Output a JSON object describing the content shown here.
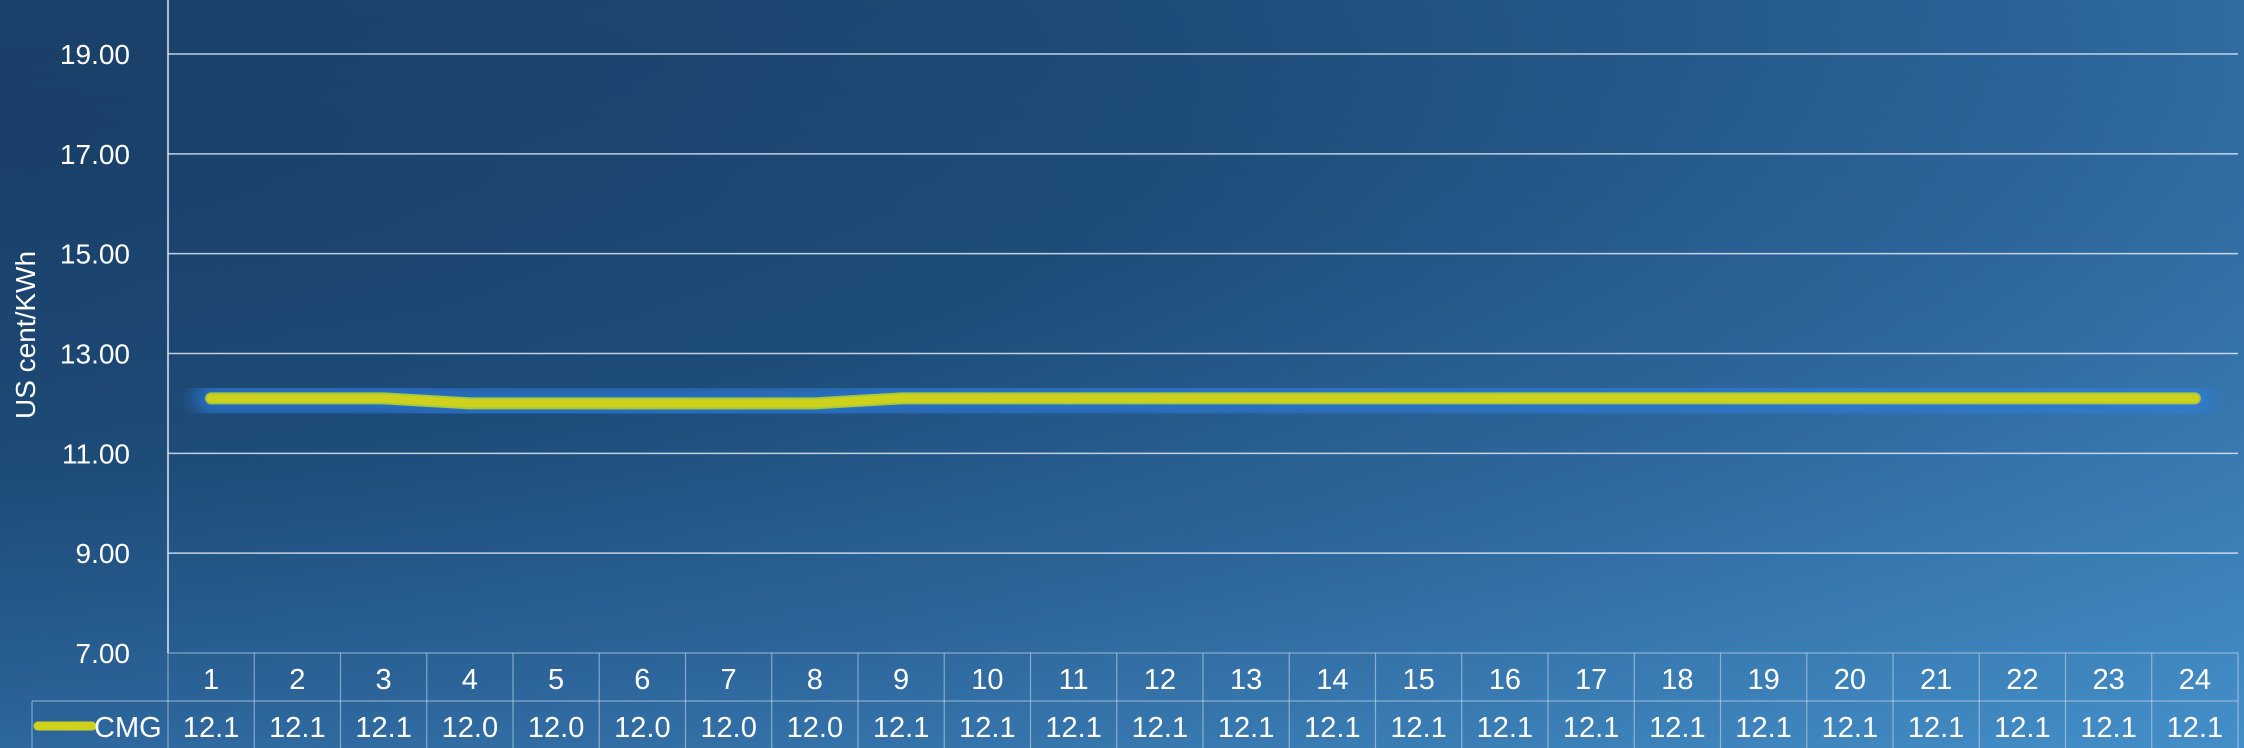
{
  "chart_data": {
    "type": "line",
    "ylabel": "US cent/KWh",
    "ylim": [
      7.0,
      20.0
    ],
    "yticks": [
      "7.00",
      "9.00",
      "11.00",
      "13.00",
      "15.00",
      "17.00",
      "19.00"
    ],
    "grid": true,
    "categories": [
      "1",
      "2",
      "3",
      "4",
      "5",
      "6",
      "7",
      "8",
      "9",
      "10",
      "11",
      "12",
      "13",
      "14",
      "15",
      "16",
      "17",
      "18",
      "19",
      "20",
      "21",
      "22",
      "23",
      "24"
    ],
    "series": [
      {
        "name": "CMG",
        "color": "#cfd21c",
        "values": [
          12.1,
          12.1,
          12.1,
          12.0,
          12.0,
          12.0,
          12.0,
          12.0,
          12.1,
          12.1,
          12.1,
          12.1,
          12.1,
          12.1,
          12.1,
          12.1,
          12.1,
          12.1,
          12.1,
          12.1,
          12.1,
          12.1,
          12.1,
          12.1
        ],
        "table_labels": [
          "12.1",
          "12.1",
          "12.1",
          "12.0",
          "12.0",
          "12.0",
          "12.0",
          "12.0",
          "12.1",
          "12.1",
          "12.1",
          "12.1",
          "12.1",
          "12.1",
          "12.1",
          "12.1",
          "12.1",
          "12.1",
          "12.1",
          "12.1",
          "12.1",
          "12.1",
          "12.1",
          "12.1"
        ]
      }
    ],
    "legend_placement": "data-table-left",
    "colors": {
      "line": "#cfd21c",
      "line_edge": "#a8c93a",
      "glow": "#2f7fe0",
      "grid": "#dfe8f2",
      "text": "#ffffff"
    }
  }
}
